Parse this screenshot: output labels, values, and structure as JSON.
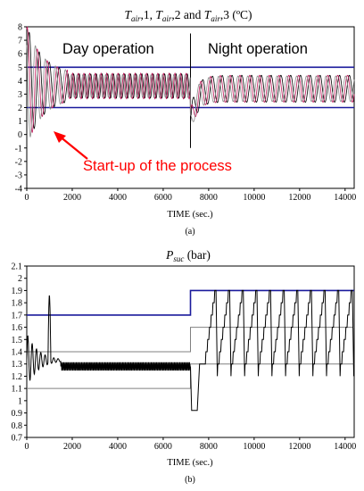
{
  "chart_data": [
    {
      "type": "line",
      "title": "T_air,1, T_air,2 and T_air,3 (ºC)",
      "title_parts": {
        "t1": "T",
        "s1": "air",
        "r1": ",1, ",
        "t2": "T",
        "s2": "air",
        "r2": ",2 and ",
        "t3": "T",
        "s3": "air",
        "r3": ",3 (ºC)"
      },
      "xlabel": "TIME (sec.)",
      "ylabel": "",
      "xlim": [
        0,
        14400
      ],
      "ylim": [
        -4,
        8
      ],
      "x_ticks": [
        0,
        2000,
        4000,
        6000,
        8000,
        10000,
        12000,
        14000
      ],
      "y_ticks": [
        -4,
        -3,
        -2,
        -1,
        0,
        1,
        2,
        3,
        4,
        5,
        6,
        7,
        8
      ],
      "grid": false,
      "caption": "(a)",
      "annotations": {
        "day": "Day operation",
        "night": "Night operation",
        "startup": "Start-up of the process"
      },
      "reference_lines": [
        {
          "kind": "limit",
          "color": "#1a1a9c",
          "points": [
            [
              0,
              5
            ],
            [
              14400,
              5
            ]
          ]
        },
        {
          "kind": "limit",
          "color": "#1a1a9c",
          "points": [
            [
              0,
              2
            ],
            [
              14400,
              2
            ]
          ]
        },
        {
          "kind": "divider",
          "color": "#000000",
          "points": [
            [
              7200,
              -1
            ],
            [
              7200,
              7.5
            ]
          ]
        }
      ],
      "series": [
        {
          "color": "#000000",
          "phase": 0.0,
          "amp_day": 0.9,
          "amp_night": 1.0
        },
        {
          "color": "#c2185b",
          "phase": 1.2,
          "amp_day": 0.95,
          "amp_night": 1.0
        },
        {
          "color": "#8c8c8c",
          "phase": 2.4,
          "amp_day": 0.85,
          "amp_night": 0.95
        }
      ]
    },
    {
      "type": "line",
      "title": "P_suc (bar)",
      "title_parts": {
        "t": "P",
        "s": "suc",
        "r": " (bar)"
      },
      "xlabel": "TIME (sec.)",
      "ylabel": "",
      "xlim": [
        0,
        14400
      ],
      "ylim": [
        0.7,
        2.1
      ],
      "x_ticks": [
        0,
        2000,
        4000,
        6000,
        8000,
        10000,
        12000,
        14000
      ],
      "y_ticks": [
        0.7,
        0.8,
        0.9,
        1.0,
        1.1,
        1.2,
        1.3,
        1.4,
        1.5,
        1.6,
        1.7,
        1.8,
        1.9,
        2.0,
        2.1
      ],
      "y_tick_labels": [
        "0.7",
        "0.8",
        "0.9",
        "1",
        "1.1",
        "1.2",
        "1.3",
        "1.4",
        "1.5",
        "1.6",
        "1.7",
        "1.8",
        "1.9",
        "2",
        "2.1"
      ],
      "grid": false,
      "caption": "(b)",
      "reference_lines": [
        {
          "kind": "setpoint",
          "color": "#1a1a9c",
          "points": [
            [
              0,
              1.7
            ],
            [
              7200,
              1.7
            ],
            [
              7200,
              1.9
            ],
            [
              14400,
              1.9
            ]
          ]
        },
        {
          "kind": "band",
          "color": "#808080",
          "points": [
            [
              0,
              1.4
            ],
            [
              7200,
              1.4
            ],
            [
              7200,
              1.6
            ],
            [
              14400,
              1.6
            ]
          ]
        },
        {
          "kind": "band",
          "color": "#808080",
          "points": [
            [
              0,
              1.1
            ],
            [
              7200,
              1.1
            ],
            [
              7200,
              1.3
            ],
            [
              14400,
              1.3
            ]
          ]
        }
      ],
      "series": [
        {
          "color": "#000000",
          "steady_day": 1.28,
          "night_low": 1.2,
          "night_high": 1.9,
          "night_cycles": 11
        }
      ]
    }
  ]
}
